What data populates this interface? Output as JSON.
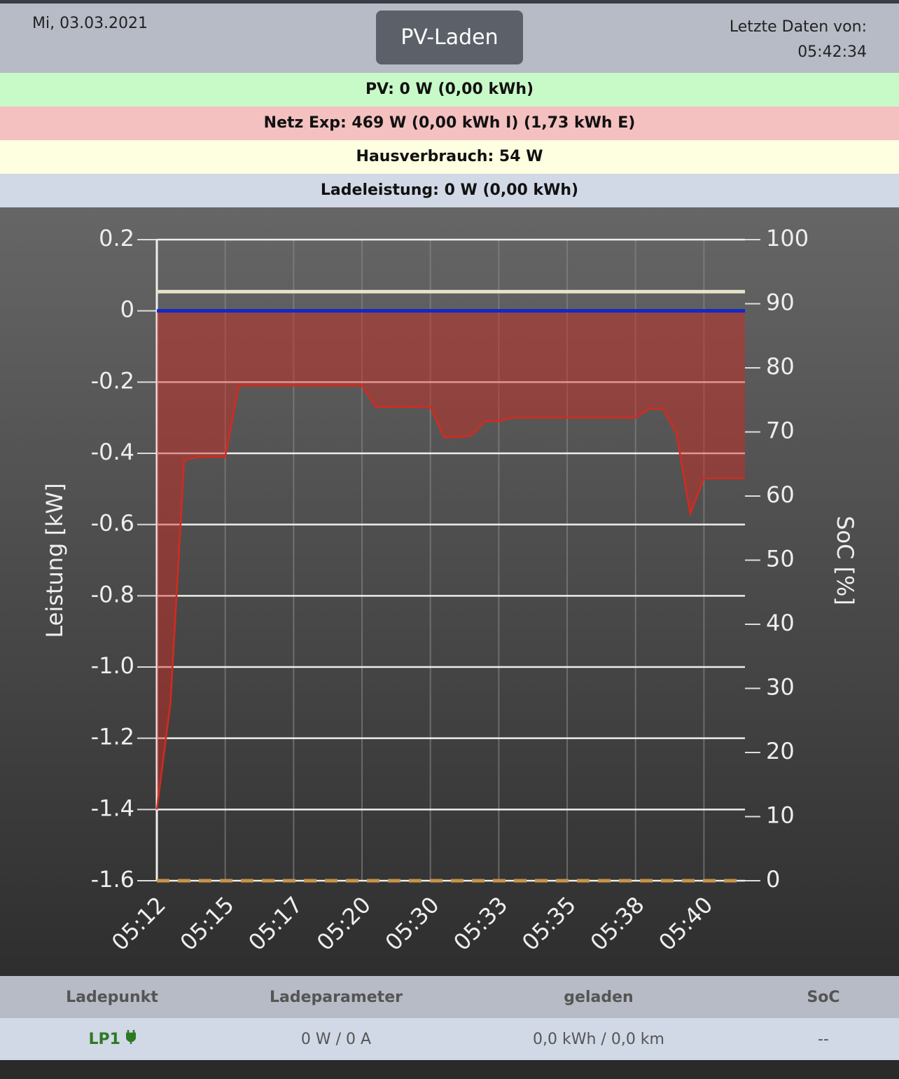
{
  "header": {
    "date": "Mi, 03.03.2021",
    "mode_button": "PV-Laden",
    "last_data_label": "Letzte Daten von:",
    "last_data_time": "05:42:34"
  },
  "status_bars": [
    "PV: 0 W (0,00 kWh)",
    "Netz Exp: 469 W (0,00 kWh I) (1,73 kWh E)",
    "Hausverbrauch: 54 W",
    "Ladeleistung: 0 W (0,00 kWh)"
  ],
  "chart_data": {
    "type": "line",
    "ylabel": "Leistung [kW]",
    "y2label": "SoC [%]",
    "categories": [
      "05:12",
      null,
      null,
      null,
      null,
      "05:15",
      null,
      null,
      null,
      null,
      "05:17",
      null,
      null,
      null,
      null,
      "05:20",
      null,
      null,
      null,
      null,
      "05:30",
      null,
      null,
      null,
      null,
      "05:33",
      null,
      null,
      null,
      null,
      "05:35",
      null,
      null,
      null,
      null,
      "05:38",
      null,
      null,
      null,
      null,
      "05:40",
      null,
      null,
      null
    ],
    "ylim": [
      -1.6,
      0.2
    ],
    "yticks": [
      0.2,
      0,
      -0.2,
      -0.4,
      -0.6,
      -0.8,
      {
        "value": -1,
        "label": "-1.0"
      },
      -1.2,
      -1.4,
      -1.6
    ],
    "y2lim": [
      0,
      100
    ],
    "y2ticks": [
      0,
      10,
      20,
      30,
      40,
      50,
      60,
      70,
      80,
      90,
      100
    ],
    "grid": true,
    "series": [
      {
        "color": "#e8e4c8",
        "values": [
          0.054,
          0.054,
          0.054,
          0.054,
          0.054,
          0.054,
          0.054,
          0.054,
          0.054,
          0.054,
          0.054,
          0.054,
          0.054,
          0.054,
          0.054,
          0.054,
          0.054,
          0.054,
          0.054,
          0.054,
          0.054,
          0.054,
          0.054,
          0.054,
          0.054,
          0.054,
          0.054,
          0.054,
          0.054,
          0.054,
          0.054,
          0.054,
          0.054,
          0.054,
          0.054,
          0.054,
          0.054,
          0.054,
          0.054,
          0.054,
          0.054,
          0.054,
          0.054,
          0.054
        ]
      },
      {
        "color": "#d42a1f",
        "area": true,
        "values": [
          -1.4,
          -1.1,
          -0.42,
          -0.41,
          -0.41,
          -0.41,
          -0.21,
          -0.21,
          -0.21,
          -0.21,
          -0.21,
          -0.21,
          -0.21,
          -0.21,
          -0.21,
          -0.21,
          -0.27,
          -0.27,
          -0.27,
          -0.27,
          -0.27,
          -0.355,
          -0.355,
          -0.35,
          -0.31,
          -0.31,
          -0.3,
          -0.3,
          -0.3,
          -0.3,
          -0.3,
          -0.3,
          -0.3,
          -0.3,
          -0.3,
          -0.3,
          -0.275,
          -0.275,
          -0.345,
          -0.57,
          -0.47,
          -0.47,
          -0.47,
          -0.47
        ]
      },
      {
        "color": "#1428c8",
        "values": [
          0,
          0,
          0,
          0,
          0,
          0,
          0,
          0,
          0,
          0,
          0,
          0,
          0,
          0,
          0,
          0,
          0,
          0,
          0,
          0,
          0,
          0,
          0,
          0,
          0,
          0,
          0,
          0,
          0,
          0,
          0,
          0,
          0,
          0,
          0,
          0,
          0,
          0,
          0,
          0,
          0,
          0,
          0,
          0
        ]
      },
      {
        "color": "#c8944a",
        "axis": "y2",
        "dashed": true,
        "values": [
          0,
          0,
          0,
          0,
          0,
          0,
          0,
          0,
          0,
          0,
          0,
          0,
          0,
          0,
          0,
          0,
          0,
          0,
          0,
          0,
          0,
          0,
          0,
          0,
          0,
          0,
          0,
          0,
          0,
          0,
          0,
          0,
          0,
          0,
          0,
          0,
          0,
          0,
          0,
          0,
          0,
          0,
          0,
          0
        ]
      }
    ]
  },
  "table": {
    "columns": [
      "Ladepunkt",
      "Ladeparameter",
      "geladen",
      "SoC"
    ],
    "rows": [
      [
        "LP1",
        "0 W / 0 A",
        "0,0 kWh / 0,0 km",
        "--"
      ]
    ]
  }
}
